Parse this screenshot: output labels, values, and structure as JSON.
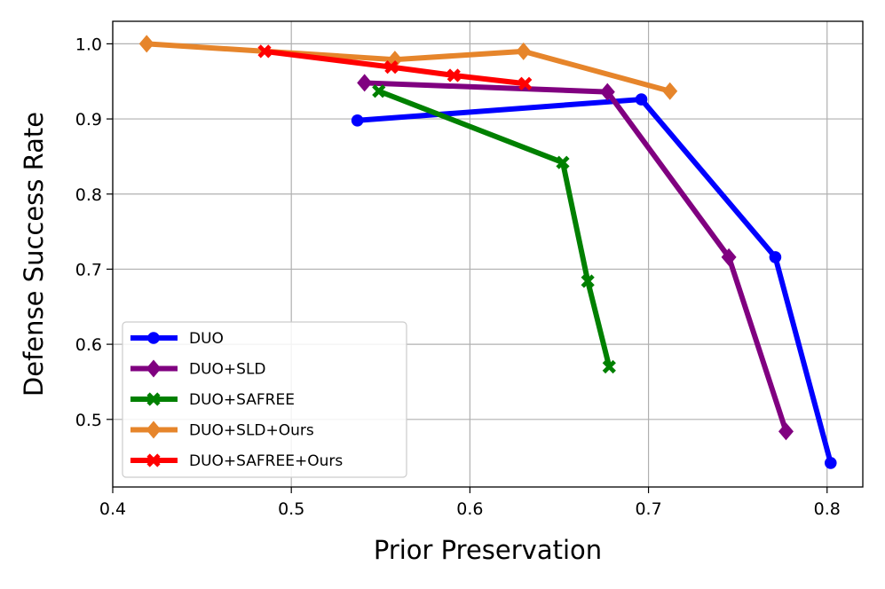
{
  "chart_data": {
    "type": "line",
    "title": "",
    "xlabel": "Prior Preservation",
    "ylabel": "Defense Success Rate",
    "xlim": [
      0.4,
      0.82
    ],
    "ylim": [
      0.41,
      1.03
    ],
    "xticks": [
      0.4,
      0.5,
      0.6,
      0.7,
      0.8
    ],
    "xtick_labels": [
      "0.4",
      "0.5",
      "0.6",
      "0.7",
      "0.8"
    ],
    "yticks": [
      0.5,
      0.6,
      0.7,
      0.8,
      0.9,
      1.0
    ],
    "ytick_labels": [
      "0.5",
      "0.6",
      "0.7",
      "0.8",
      "0.9",
      "1.0"
    ],
    "grid": true,
    "legend_position": "lower-left",
    "series": [
      {
        "name": "DUO",
        "color": "#0000ff",
        "marker": "circle",
        "x": [
          0.537,
          0.696,
          0.771,
          0.802
        ],
        "y": [
          0.898,
          0.926,
          0.716,
          0.442
        ]
      },
      {
        "name": "DUO+SLD",
        "color": "#800080",
        "marker": "diamond",
        "x": [
          0.541,
          0.677,
          0.745,
          0.777
        ],
        "y": [
          0.948,
          0.936,
          0.716,
          0.484
        ]
      },
      {
        "name": "DUO+SAFREE",
        "color": "#008000",
        "marker": "x",
        "x": [
          0.549,
          0.652,
          0.666,
          0.678
        ],
        "y": [
          0.937,
          0.842,
          0.684,
          0.57
        ]
      },
      {
        "name": "DUO+SLD+Ours",
        "color": "#e6852b",
        "marker": "diamond",
        "x": [
          0.419,
          0.558,
          0.63,
          0.712
        ],
        "y": [
          1.0,
          0.979,
          0.99,
          0.937
        ]
      },
      {
        "name": "DUO+SAFREE+Ours",
        "color": "#ff0000",
        "marker": "x",
        "x": [
          0.485,
          0.556,
          0.591,
          0.631
        ],
        "y": [
          0.99,
          0.969,
          0.958,
          0.947
        ]
      }
    ]
  }
}
